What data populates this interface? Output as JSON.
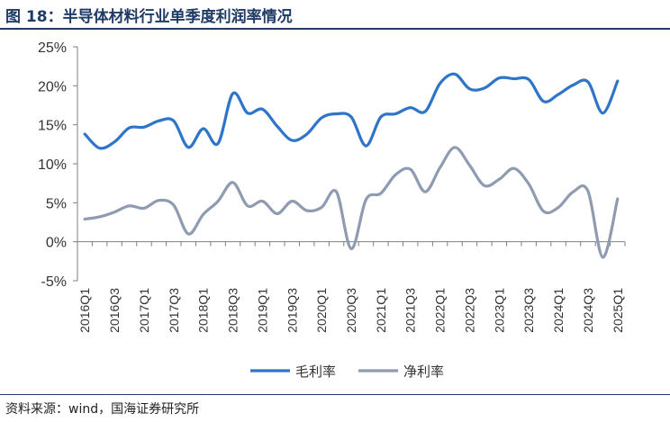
{
  "header": {
    "title": "图 18：半导体材料行业单季度利润率情况"
  },
  "footer": {
    "source": "资料来源：wind，国海证券研究所"
  },
  "chart_data": {
    "type": "line",
    "title": "图 18：半导体材料行业单季度利润率情况",
    "xlabel": "",
    "ylabel": "",
    "ylim": [
      -5,
      25
    ],
    "yticks": [
      "-5%",
      "0%",
      "5%",
      "10%",
      "15%",
      "20%",
      "25%"
    ],
    "ytick_values": [
      -5,
      0,
      5,
      10,
      15,
      20,
      25
    ],
    "x": [
      "2016Q1",
      "2016Q2",
      "2016Q3",
      "2016Q4",
      "2017Q1",
      "2017Q2",
      "2017Q3",
      "2017Q4",
      "2018Q1",
      "2018Q2",
      "2018Q3",
      "2018Q4",
      "2019Q1",
      "2019Q2",
      "2019Q3",
      "2019Q4",
      "2020Q1",
      "2020Q2",
      "2020Q3",
      "2020Q4",
      "2021Q1",
      "2021Q2",
      "2021Q3",
      "2021Q4",
      "2022Q1",
      "2022Q2",
      "2022Q3",
      "2022Q4",
      "2023Q1",
      "2023Q2",
      "2023Q3",
      "2023Q4",
      "2024Q1",
      "2024Q2",
      "2024Q3",
      "2024Q4",
      "2025Q1"
    ],
    "xtick_labels": [
      "2016Q1",
      "2016Q3",
      "2017Q1",
      "2017Q3",
      "2018Q1",
      "2018Q3",
      "2019Q1",
      "2019Q3",
      "2020Q1",
      "2020Q3",
      "2021Q1",
      "2021Q3",
      "2022Q1",
      "2022Q3",
      "2023Q1",
      "2023Q3",
      "2024Q1",
      "2024Q3",
      "2025Q1"
    ],
    "legend_position": "bottom",
    "grid": false,
    "series": [
      {
        "name": "毛利率",
        "color": "#2e75c8",
        "values": [
          13.8,
          12.0,
          12.8,
          14.6,
          14.7,
          15.5,
          15.5,
          12.1,
          14.5,
          12.6,
          19.0,
          16.5,
          17.0,
          14.8,
          13.0,
          13.8,
          15.9,
          16.4,
          16.0,
          12.3,
          16.0,
          16.4,
          17.2,
          16.7,
          20.3,
          21.5,
          19.6,
          19.7,
          21.0,
          20.9,
          20.8,
          18.0,
          18.9,
          20.1,
          20.5,
          16.5,
          20.6
        ]
      },
      {
        "name": "净利率",
        "color": "#8e9bb0",
        "values": [
          2.9,
          3.2,
          3.8,
          4.6,
          4.3,
          5.3,
          4.7,
          1.0,
          3.5,
          5.2,
          7.6,
          4.6,
          5.2,
          3.6,
          5.2,
          4.0,
          4.4,
          6.4,
          -0.9,
          5.4,
          6.2,
          8.6,
          9.3,
          6.4,
          9.5,
          12.1,
          9.8,
          7.2,
          8.0,
          9.4,
          7.4,
          3.9,
          4.4,
          6.4,
          6.5,
          -2.0,
          5.5
        ]
      }
    ]
  }
}
